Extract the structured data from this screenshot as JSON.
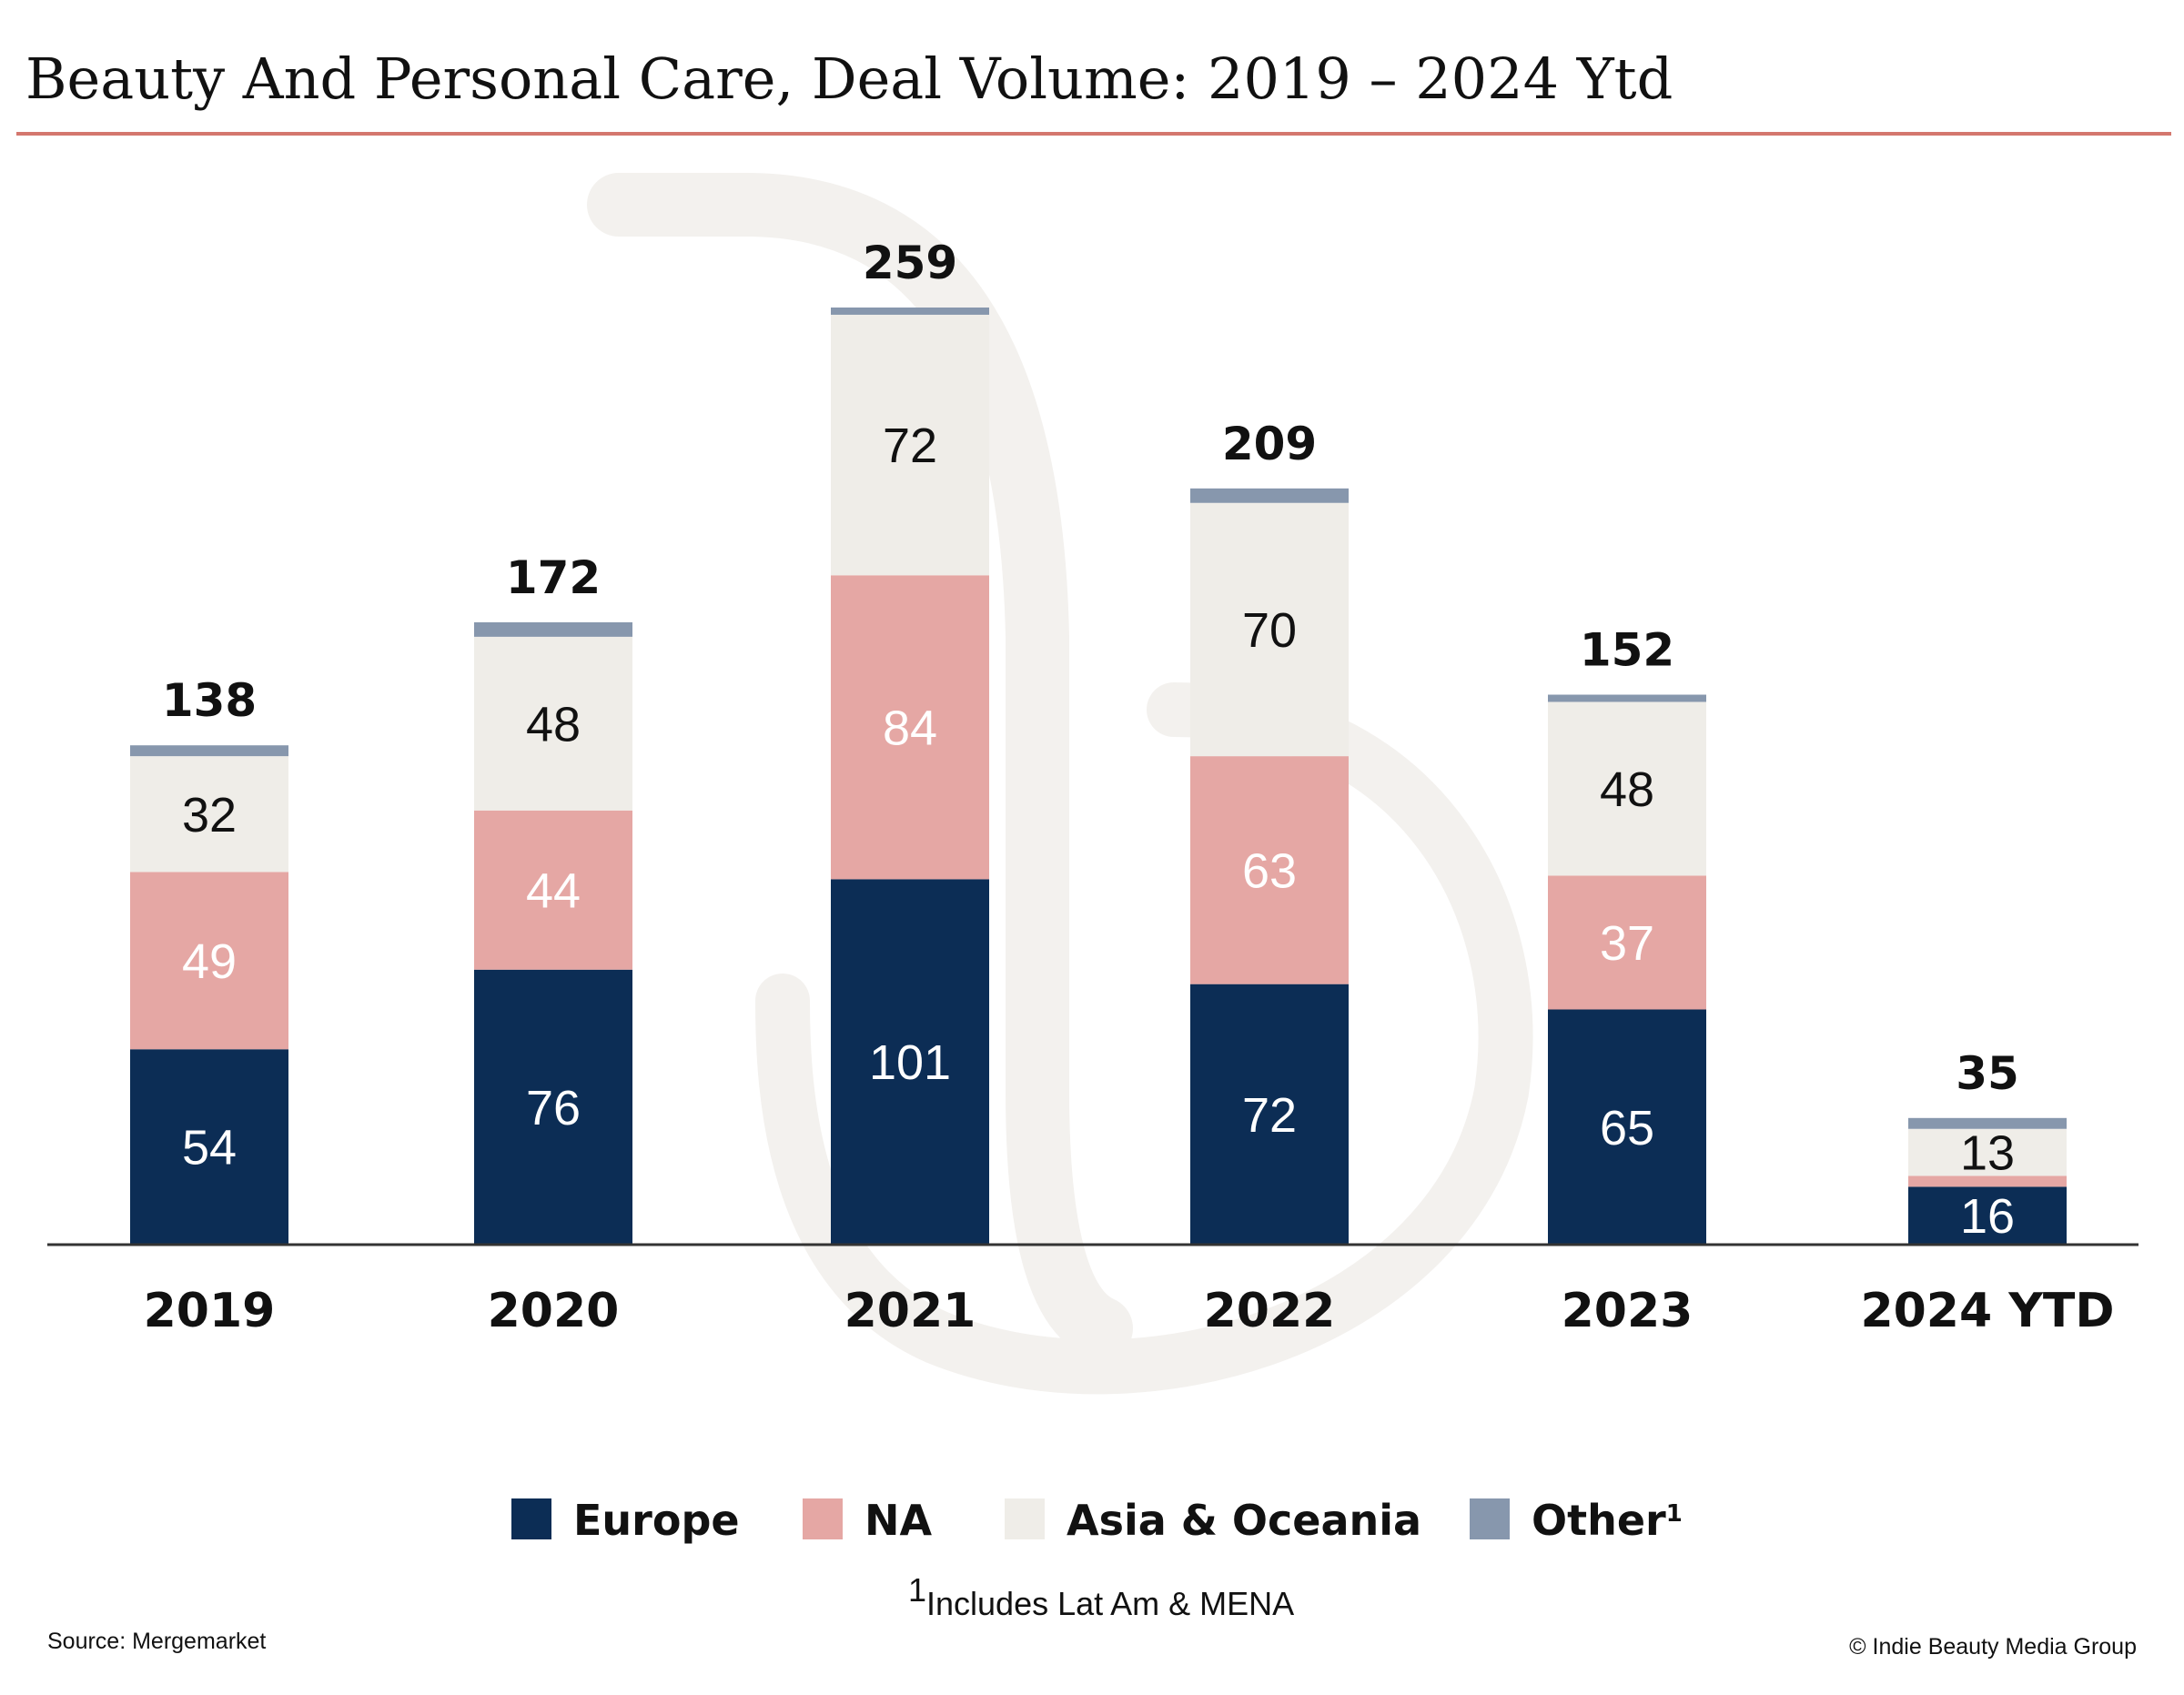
{
  "chart_data": {
    "type": "bar",
    "stacked": true,
    "title": "Beauty And Personal Care, Deal Volume: 2019 – 2024 Ytd",
    "categories": [
      "2019",
      "2020",
      "2021",
      "2022",
      "2023",
      "2024 YTD"
    ],
    "series": [
      {
        "name": "Europe",
        "color": "#0c2d55",
        "label_color": "#ffffff",
        "values": [
          54,
          76,
          101,
          72,
          65,
          16
        ]
      },
      {
        "name": "NA",
        "color": "#e5a7a4",
        "label_color": "#ffffff",
        "values": [
          49,
          44,
          84,
          63,
          37,
          3
        ]
      },
      {
        "name": "Asia & Oceania",
        "color": "#efede8",
        "label_color": "#111111",
        "values": [
          32,
          48,
          72,
          70,
          48,
          13
        ]
      },
      {
        "name": "Other",
        "legend_superscript": "1",
        "color": "#8797ad",
        "label_color": "#111111",
        "values": [
          3,
          4,
          2,
          4,
          2,
          3
        ]
      }
    ],
    "segment_labels": [
      [
        "54",
        "76",
        "101",
        "72",
        "65",
        "16"
      ],
      [
        "49",
        "44",
        "84",
        "63",
        "37",
        ""
      ],
      [
        "32",
        "48",
        "72",
        "70",
        "48",
        "13"
      ],
      [
        "",
        "",
        "",
        "",
        "",
        ""
      ]
    ],
    "totals": [
      138,
      172,
      259,
      209,
      152,
      35
    ],
    "ylim": [
      0,
      259
    ],
    "grid": false,
    "legend_position": "bottom",
    "footnote": {
      "marker": "1",
      "text": "Includes Lat Am & MENA"
    },
    "source": "Source: Mergemarket",
    "credit": "© Indie Beauty Media Group"
  },
  "colors": {
    "title_rule": "#d4776e",
    "axis": "#333333",
    "watermark": "#f3f1ee"
  }
}
